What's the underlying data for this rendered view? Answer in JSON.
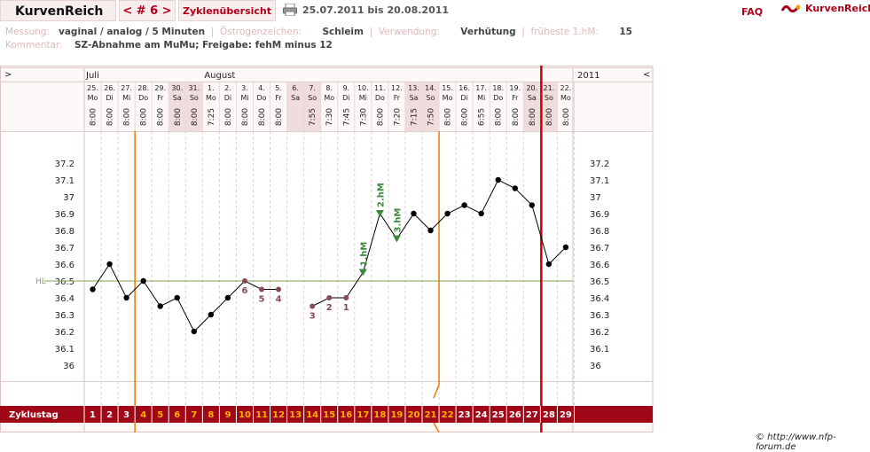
{
  "header": {
    "brand": "KurvenReich",
    "cycle_nav": "< # 6 >",
    "overview": "Zyklenübersicht",
    "date_range": "25.07.2011 bis 20.08.2011",
    "faq": "FAQ",
    "logo_text": "KurvenReich",
    "accent_color": "#b20018"
  },
  "info": {
    "measurement_label": "Messung:",
    "measurement_value": "vaginal / analog / 5 Minuten",
    "estrogen_label": "Östrogenzeichen:",
    "estrogen_value": "Schleim",
    "usage_label": "Verwendung:",
    "usage_value": "Verhütung",
    "earliest_label": "früheste 1.hM:",
    "earliest_value": "15",
    "comment_label": "Kommentar:",
    "comment_value": "SZ-Abnahme am MuMu; Freigabe: fehM minus 12"
  },
  "footer": {
    "copyright": "© http://www.nfp-forum.de"
  },
  "chart_data": {
    "type": "line",
    "year": "2011",
    "nav_left": ">",
    "nav_right": "<",
    "months": [
      {
        "label": "Juli",
        "at_day": 0
      },
      {
        "label": "August",
        "at_day": 7
      }
    ],
    "cycle_label": "Zyklustag",
    "hl_label": "HL",
    "hl_value": 36.5,
    "ylim": [
      36.0,
      37.2
    ],
    "yticks": [
      "37.2",
      "37.1",
      "37",
      "36.9",
      "36.8",
      "36.7",
      "36.6",
      "36.5",
      "36.4",
      "36.3",
      "36.2",
      "36.1",
      "36"
    ],
    "days": [
      {
        "date": "25.",
        "wd": "Mo",
        "time": "8:00",
        "cd": "1",
        "temp": 36.45,
        "kind": "normal",
        "weekend": false,
        "cdcolor": "#ffffff"
      },
      {
        "date": "26.",
        "wd": "Di",
        "time": "8:00",
        "cd": "2",
        "temp": 36.6,
        "kind": "normal",
        "weekend": false,
        "cdcolor": "#ffffff"
      },
      {
        "date": "27.",
        "wd": "Mi",
        "time": "8:00",
        "cd": "3",
        "temp": 36.4,
        "kind": "normal",
        "weekend": false,
        "cdcolor": "#ffffff"
      },
      {
        "date": "28.",
        "wd": "Do",
        "time": "8:00",
        "cd": "4",
        "temp": 36.5,
        "kind": "normal",
        "weekend": false,
        "cdcolor": "#ffb000"
      },
      {
        "date": "29.",
        "wd": "Fr",
        "time": "8:00",
        "cd": "5",
        "temp": 36.35,
        "kind": "normal",
        "weekend": false,
        "cdcolor": "#ffb000"
      },
      {
        "date": "30.",
        "wd": "Sa",
        "time": "8:00",
        "cd": "6",
        "temp": 36.4,
        "kind": "normal",
        "weekend": true,
        "cdcolor": "#ffb000"
      },
      {
        "date": "31.",
        "wd": "So",
        "time": "8:00",
        "cd": "7",
        "temp": 36.2,
        "kind": "normal",
        "weekend": true,
        "cdcolor": "#ffb000"
      },
      {
        "date": "1.",
        "wd": "Mo",
        "time": "7:25",
        "cd": "8",
        "temp": 36.3,
        "kind": "normal",
        "weekend": false,
        "cdcolor": "#ffb000"
      },
      {
        "date": "2.",
        "wd": "Di",
        "time": "8:00",
        "cd": "9",
        "temp": 36.4,
        "kind": "normal",
        "weekend": false,
        "cdcolor": "#ffb000"
      },
      {
        "date": "3.",
        "wd": "Mi",
        "time": "8:00",
        "cd": "10",
        "temp": 36.5,
        "kind": "low",
        "label": "6",
        "weekend": false,
        "cdcolor": "#ffb000"
      },
      {
        "date": "4.",
        "wd": "Do",
        "time": "8:00",
        "cd": "11",
        "temp": 36.45,
        "kind": "low",
        "label": "5",
        "weekend": false,
        "cdcolor": "#ffb000"
      },
      {
        "date": "5.",
        "wd": "Fr",
        "time": "8:00",
        "cd": "12",
        "temp": 36.45,
        "kind": "low",
        "label": "4",
        "weekend": false,
        "cdcolor": "#ffb000"
      },
      {
        "date": "6.",
        "wd": "Sa",
        "time": "",
        "cd": "13",
        "temp": null,
        "kind": "none",
        "weekend": true,
        "cdcolor": "#ffb000"
      },
      {
        "date": "7.",
        "wd": "So",
        "time": "7:55",
        "cd": "14",
        "temp": 36.35,
        "kind": "low",
        "label": "3",
        "weekend": true,
        "cdcolor": "#ffb000"
      },
      {
        "date": "8.",
        "wd": "Mo",
        "time": "7:30",
        "cd": "15",
        "temp": 36.4,
        "kind": "low",
        "label": "2",
        "weekend": false,
        "cdcolor": "#ffb000"
      },
      {
        "date": "9.",
        "wd": "Di",
        "time": "7:45",
        "cd": "16",
        "temp": 36.4,
        "kind": "low",
        "label": "1",
        "weekend": false,
        "cdcolor": "#ffb000"
      },
      {
        "date": "10.",
        "wd": "Mi",
        "time": "7:30",
        "cd": "17",
        "temp": 36.55,
        "kind": "high",
        "label": "1.hM",
        "weekend": false,
        "cdcolor": "#ffb000"
      },
      {
        "date": "11.",
        "wd": "Do",
        "time": "8:00",
        "cd": "18",
        "temp": 36.9,
        "kind": "high",
        "label": "2.hM",
        "weekend": false,
        "cdcolor": "#ffb000"
      },
      {
        "date": "12.",
        "wd": "Fr",
        "time": "7:20",
        "cd": "19",
        "temp": 36.75,
        "kind": "high",
        "label": "3.hM",
        "weekend": false,
        "cdcolor": "#ffb000"
      },
      {
        "date": "13.",
        "wd": "Sa",
        "time": "7:15",
        "cd": "20",
        "temp": 36.9,
        "kind": "normal",
        "weekend": true,
        "cdcolor": "#ffb000"
      },
      {
        "date": "14.",
        "wd": "So",
        "time": "7:50",
        "cd": "21",
        "temp": 36.8,
        "kind": "normal",
        "weekend": true,
        "cdcolor": "#ffb000"
      },
      {
        "date": "15.",
        "wd": "Mo",
        "time": "8:00",
        "cd": "22",
        "temp": 36.9,
        "kind": "normal",
        "weekend": false,
        "cdcolor": "#ffb000"
      },
      {
        "date": "16.",
        "wd": "Di",
        "time": "8:00",
        "cd": "23",
        "temp": 36.95,
        "kind": "normal",
        "weekend": false,
        "cdcolor": "#ffffff"
      },
      {
        "date": "17.",
        "wd": "Mi",
        "time": "6:55",
        "cd": "24",
        "temp": 36.9,
        "kind": "normal",
        "weekend": false,
        "cdcolor": "#ffffff"
      },
      {
        "date": "18.",
        "wd": "Do",
        "time": "8:00",
        "cd": "25",
        "temp": 37.1,
        "kind": "normal",
        "weekend": false,
        "cdcolor": "#ffffff"
      },
      {
        "date": "19.",
        "wd": "Fr",
        "time": "8:00",
        "cd": "26",
        "temp": 37.05,
        "kind": "normal",
        "weekend": false,
        "cdcolor": "#ffffff"
      },
      {
        "date": "20.",
        "wd": "Sa",
        "time": "8:00",
        "cd": "27",
        "temp": 36.95,
        "kind": "normal",
        "weekend": true,
        "cdcolor": "#ffffff"
      },
      {
        "date": "21.",
        "wd": "So",
        "time": "8:00",
        "cd": "28",
        "temp": 36.6,
        "kind": "normal",
        "weekend": true,
        "cdcolor": "#ffffff"
      },
      {
        "date": "22.",
        "wd": "Mo",
        "time": "8:00",
        "cd": "29",
        "temp": 36.7,
        "kind": "normal",
        "weekend": false,
        "cdcolor": "#ffffff"
      }
    ],
    "orange_lines_after_day": [
      3,
      21
    ],
    "red_line_after_day": 27
  }
}
